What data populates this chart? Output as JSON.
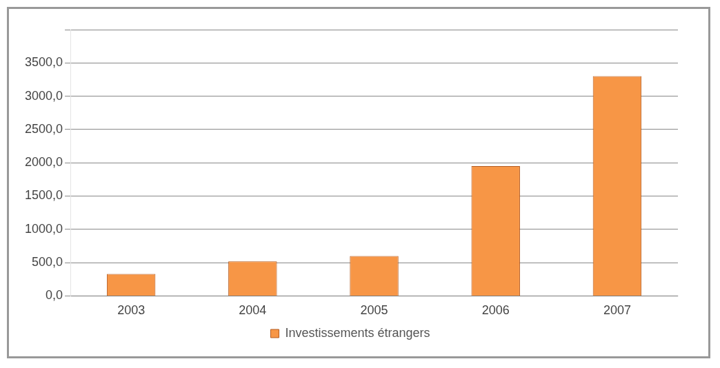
{
  "chart_data": {
    "type": "bar",
    "categories": [
      "2003",
      "2004",
      "2005",
      "2006",
      "2007"
    ],
    "series": [
      {
        "name": "Investissements étrangers",
        "color": "#f79646",
        "values": [
          330,
          520,
          600,
          1950,
          3300
        ]
      }
    ],
    "ylim": [
      0,
      4000
    ],
    "yticks": [
      {
        "value": 0,
        "label": "0,0"
      },
      {
        "value": 500,
        "label": "500,0"
      },
      {
        "value": 1000,
        "label": "1000,0"
      },
      {
        "value": 1500,
        "label": "1500,0"
      },
      {
        "value": 2000,
        "label": "2000,0"
      },
      {
        "value": 2500,
        "label": "2500,0"
      },
      {
        "value": 3000,
        "label": "3000,0"
      },
      {
        "value": 3500,
        "label": "3500,0"
      },
      {
        "value": 4000,
        "label": null
      }
    ],
    "grid": "y",
    "legend": "bottom"
  }
}
